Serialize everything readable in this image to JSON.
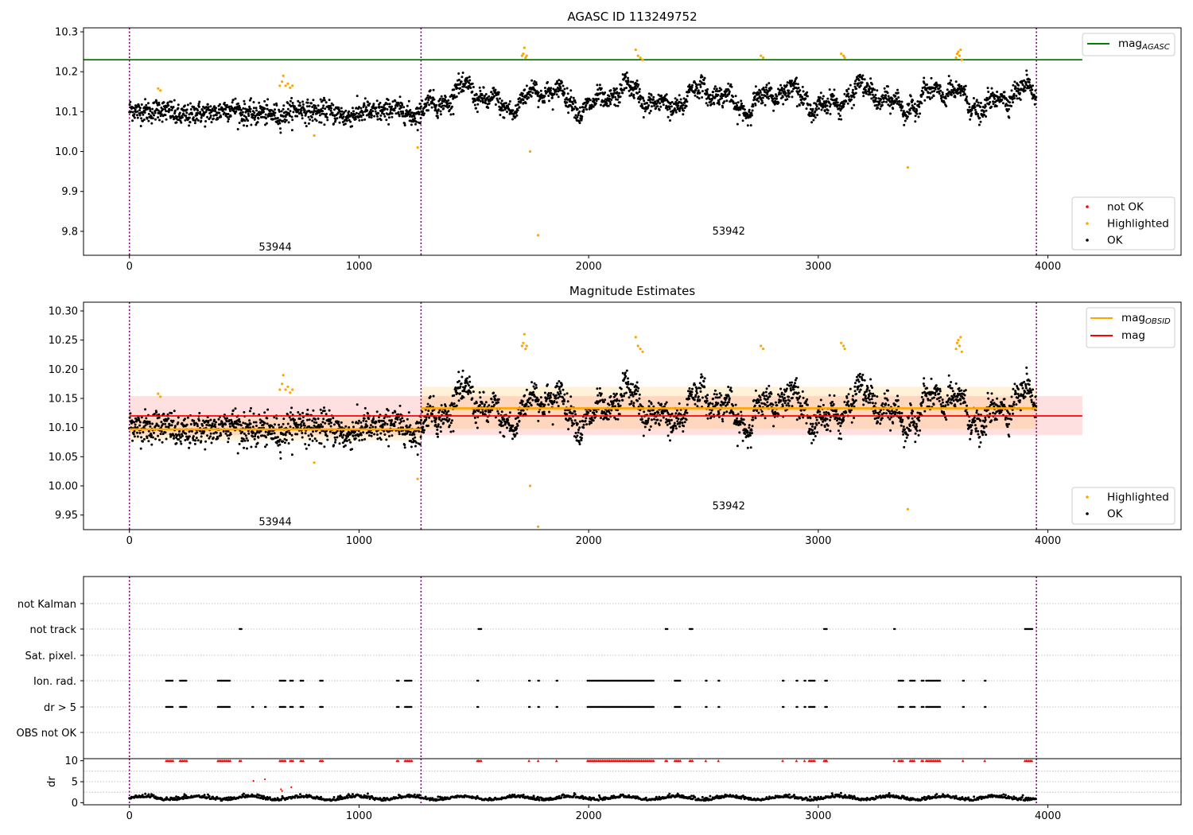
{
  "chart_data": [
    {
      "type": "scatter",
      "title": "AGASC ID 113249752",
      "xlabel": "",
      "ylabel": "",
      "xlim": [
        -200,
        4580
      ],
      "ylim": [
        9.74,
        10.31
      ],
      "x_ticks": [
        0,
        1000,
        2000,
        3000,
        4000
      ],
      "y_ticks": [
        9.8,
        9.9,
        10.0,
        10.1,
        10.2,
        10.3
      ],
      "x_tick_labels": [
        "0",
        "1000",
        "2000",
        "3000",
        "4000"
      ],
      "y_tick_labels": [
        "9.8",
        "9.9",
        "10.0",
        "10.1",
        "10.2",
        "10.3"
      ],
      "grid": false,
      "legends": [
        {
          "placement": "top-right",
          "entries": [
            {
              "label": "mag",
              "sub": "AGASC",
              "style": "line",
              "color": "#008000"
            }
          ]
        },
        {
          "placement": "bottom-right",
          "entries": [
            {
              "label": "not OK",
              "style": "dot",
              "color": "#ff0000"
            },
            {
              "label": "Highlighted",
              "style": "dot",
              "color": "#ffa500"
            },
            {
              "label": "OK",
              "style": "dot",
              "color": "#000000"
            }
          ]
        }
      ],
      "hlines": [
        {
          "y": 10.23,
          "x0": -200,
          "x1": 4150,
          "color": "#008000"
        }
      ],
      "obs_boundaries": [
        0,
        1270,
        3950
      ],
      "annotations": [
        {
          "text": "53944",
          "x": 635,
          "y": 9.76
        },
        {
          "text": "53942",
          "x": 2610,
          "y": 9.8
        }
      ],
      "series": [
        {
          "name": "OK",
          "color": "#000000",
          "segments": [
            {
              "x0": 0,
              "x1": 1270,
              "mean": 10.1,
              "spread": 0.018
            },
            {
              "x0": 1270,
              "x1": 3950,
              "mean": 10.133,
              "spread": 0.028
            }
          ]
        },
        {
          "name": "Highlighted",
          "color": "#ffa500",
          "points": [
            [
              125,
              10.158
            ],
            [
              135,
              10.153
            ],
            [
              655,
              10.165
            ],
            [
              665,
              10.175
            ],
            [
              670,
              10.19
            ],
            [
              680,
              10.165
            ],
            [
              690,
              10.17
            ],
            [
              700,
              10.16
            ],
            [
              710,
              10.165
            ],
            [
              805,
              10.04
            ],
            [
              1255,
              10.01
            ],
            [
              1710,
              10.24
            ],
            [
              1715,
              10.245
            ],
            [
              1720,
              10.26
            ],
            [
              1725,
              10.235
            ],
            [
              1730,
              10.24
            ],
            [
              1745,
              10.0
            ],
            [
              1780,
              9.79
            ],
            [
              2205,
              10.255
            ],
            [
              2215,
              10.24
            ],
            [
              2225,
              10.235
            ],
            [
              2235,
              10.23
            ],
            [
              2750,
              10.24
            ],
            [
              2760,
              10.235
            ],
            [
              3100,
              10.245
            ],
            [
              3110,
              10.24
            ],
            [
              3115,
              10.235
            ],
            [
              3390,
              9.96
            ],
            [
              3600,
              10.235
            ],
            [
              3605,
              10.245
            ],
            [
              3610,
              10.25
            ],
            [
              3615,
              10.24
            ],
            [
              3620,
              10.255
            ],
            [
              3625,
              10.23
            ]
          ]
        }
      ]
    },
    {
      "type": "scatter",
      "title": "Magnitude Estimates",
      "xlabel": "",
      "ylabel": "",
      "xlim": [
        -200,
        4580
      ],
      "ylim": [
        9.925,
        10.315
      ],
      "x_ticks": [
        0,
        1000,
        2000,
        3000,
        4000
      ],
      "y_ticks": [
        9.95,
        10.0,
        10.05,
        10.1,
        10.15,
        10.2,
        10.25,
        10.3
      ],
      "x_tick_labels": [
        "0",
        "1000",
        "2000",
        "3000",
        "4000"
      ],
      "y_tick_labels": [
        "9.95",
        "10.00",
        "10.05",
        "10.10",
        "10.15",
        "10.20",
        "10.25",
        "10.30"
      ],
      "grid": false,
      "legends": [
        {
          "placement": "top-right",
          "entries": [
            {
              "label": "mag",
              "sub": "OBSID",
              "style": "line",
              "color": "#ffa500"
            },
            {
              "label": "mag",
              "sub": "",
              "style": "line",
              "color": "#ff0000"
            }
          ]
        },
        {
          "placement": "bottom-right",
          "entries": [
            {
              "label": "Highlighted",
              "style": "dot",
              "color": "#ffa500"
            },
            {
              "label": "OK",
              "style": "dot",
              "color": "#000000"
            }
          ]
        }
      ],
      "mag_line": {
        "y": 10.12,
        "x0": -200,
        "x1": 4150,
        "band": [
          10.087,
          10.154
        ],
        "color": "#ff0000"
      },
      "obsid_lines": [
        {
          "x0": 0,
          "x1": 1270,
          "y": 10.097,
          "band": [
            10.078,
            10.117
          ]
        },
        {
          "x0": 1270,
          "x1": 3950,
          "y": 10.133,
          "band": [
            10.098,
            10.17
          ]
        }
      ],
      "obs_boundaries": [
        0,
        1270,
        3950
      ],
      "annotations": [
        {
          "text": "53944",
          "x": 635,
          "y": 9.938
        },
        {
          "text": "53942",
          "x": 2610,
          "y": 9.965
        }
      ],
      "series": [
        {
          "name": "OK",
          "color": "#000000",
          "segments": [
            {
              "x0": 0,
              "x1": 1270,
              "mean": 10.1,
              "spread": 0.018
            },
            {
              "x0": 1270,
              "x1": 3950,
              "mean": 10.133,
              "spread": 0.028
            }
          ]
        },
        {
          "name": "Highlighted",
          "color": "#ffa500",
          "points": [
            [
              125,
              10.158
            ],
            [
              135,
              10.153
            ],
            [
              655,
              10.165
            ],
            [
              665,
              10.175
            ],
            [
              670,
              10.19
            ],
            [
              680,
              10.165
            ],
            [
              690,
              10.17
            ],
            [
              700,
              10.16
            ],
            [
              710,
              10.165
            ],
            [
              805,
              10.04
            ],
            [
              1255,
              10.012
            ],
            [
              1710,
              10.24
            ],
            [
              1715,
              10.245
            ],
            [
              1720,
              10.26
            ],
            [
              1725,
              10.235
            ],
            [
              1730,
              10.24
            ],
            [
              1745,
              10.0
            ],
            [
              1780,
              9.93
            ],
            [
              2205,
              10.255
            ],
            [
              2215,
              10.24
            ],
            [
              2225,
              10.235
            ],
            [
              2235,
              10.23
            ],
            [
              2750,
              10.24
            ],
            [
              2760,
              10.235
            ],
            [
              3100,
              10.245
            ],
            [
              3110,
              10.24
            ],
            [
              3115,
              10.235
            ],
            [
              3390,
              9.96
            ],
            [
              3600,
              10.235
            ],
            [
              3605,
              10.245
            ],
            [
              3610,
              10.25
            ],
            [
              3615,
              10.24
            ],
            [
              3620,
              10.255
            ],
            [
              3625,
              10.23
            ]
          ]
        }
      ]
    },
    {
      "type": "scatter",
      "title": "",
      "xlim": [
        -200,
        4580
      ],
      "categories": [
        "not Kalman",
        "not track",
        "Sat. pixel.",
        "Ion. rad.",
        "dr > 5",
        "OBS not OK"
      ],
      "flags": {
        "not track": [
          [
            480,
            490
          ],
          [
            1520,
            1535
          ],
          [
            2335,
            2345
          ],
          [
            2440,
            2455
          ],
          [
            3025,
            3040
          ],
          [
            3330,
            3335
          ],
          [
            3900,
            3935
          ]
        ],
        "Sat. pixel.": [],
        "not Kalman": [],
        "OBS not OK": [],
        "Ion. rad.": [
          [
            160,
            190
          ],
          [
            220,
            250
          ],
          [
            385,
            440
          ],
          [
            655,
            680
          ],
          [
            700,
            715
          ],
          [
            745,
            760
          ],
          [
            830,
            845
          ],
          [
            1165,
            1175
          ],
          [
            1200,
            1230
          ],
          [
            1515,
            1520
          ],
          [
            1740,
            1745
          ],
          [
            1780,
            1785
          ],
          [
            1860,
            1865
          ],
          [
            1995,
            2285
          ],
          [
            2375,
            2400
          ],
          [
            2510,
            2515
          ],
          [
            2565,
            2570
          ],
          [
            2845,
            2850
          ],
          [
            2905,
            2910
          ],
          [
            2940,
            2945
          ],
          [
            2960,
            2985
          ],
          [
            3030,
            3040
          ],
          [
            3350,
            3370
          ],
          [
            3400,
            3420
          ],
          [
            3450,
            3460
          ],
          [
            3470,
            3530
          ],
          [
            3630,
            3635
          ],
          [
            3725,
            3730
          ]
        ],
        "dr > 5": [
          [
            160,
            190
          ],
          [
            220,
            250
          ],
          [
            385,
            440
          ],
          [
            535,
            540
          ],
          [
            590,
            595
          ],
          [
            655,
            680
          ],
          [
            700,
            715
          ],
          [
            745,
            760
          ],
          [
            830,
            845
          ],
          [
            1165,
            1175
          ],
          [
            1200,
            1230
          ],
          [
            1515,
            1520
          ],
          [
            1740,
            1745
          ],
          [
            1780,
            1785
          ],
          [
            1860,
            1865
          ],
          [
            1995,
            2285
          ],
          [
            2375,
            2400
          ],
          [
            2510,
            2515
          ],
          [
            2565,
            2570
          ],
          [
            2845,
            2850
          ],
          [
            2905,
            2910
          ],
          [
            2940,
            2945
          ],
          [
            2960,
            2985
          ],
          [
            3030,
            3040
          ],
          [
            3350,
            3370
          ],
          [
            3400,
            3420
          ],
          [
            3450,
            3460
          ],
          [
            3470,
            3530
          ],
          [
            3630,
            3635
          ],
          [
            3725,
            3730
          ]
        ]
      },
      "obs_boundaries": [
        0,
        1270,
        3950
      ]
    },
    {
      "type": "scatter",
      "title": "",
      "xlim": [
        -200,
        4580
      ],
      "ylim": [
        -0.5,
        10.5
      ],
      "ylabel": "dr",
      "x_ticks": [
        0,
        1000,
        2000,
        3000,
        4000
      ],
      "y_ticks": [
        0,
        5,
        10
      ],
      "x_tick_labels": [
        "0",
        "1000",
        "2000",
        "3000",
        "4000"
      ],
      "y_tick_labels": [
        "0",
        "5",
        "10"
      ],
      "clip_value": 10,
      "outliers": [
        [
          540,
          5.2
        ],
        [
          590,
          5.6
        ],
        [
          660,
          3.2
        ],
        [
          665,
          2.8
        ],
        [
          705,
          3.7
        ]
      ],
      "series": [
        {
          "name": "dr",
          "color": "#000000",
          "mean": 1.0,
          "spread": 0.4
        }
      ],
      "obs_boundaries": [
        0,
        1270,
        3950
      ]
    }
  ]
}
